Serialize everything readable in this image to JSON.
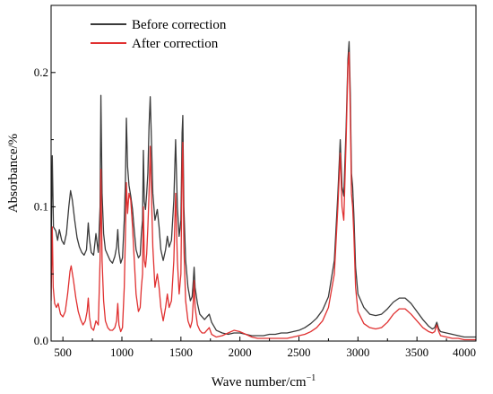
{
  "chart_data": {
    "type": "line",
    "title": "",
    "xlabel": "Wave number/cm",
    "xlabel_superscript": "−1",
    "ylabel": "Absorbance/%",
    "xlim": [
      400,
      4000
    ],
    "ylim": [
      0,
      0.25
    ],
    "x_ticks": [
      500,
      1000,
      1500,
      2000,
      2500,
      3000,
      3500,
      4000
    ],
    "x_tick_labels": [
      "500",
      "1000",
      "1500",
      "2000",
      "2500",
      "3000",
      "3500",
      "4000"
    ],
    "y_ticks": [
      0.0,
      0.1,
      0.2
    ],
    "y_tick_labels": [
      "0.0",
      "0.1",
      "0.2"
    ],
    "grid": false,
    "legend_position": "top-left",
    "series": [
      {
        "name": "Before correction",
        "color": "#3a3a3a",
        "points": [
          [
            400,
            0.07
          ],
          [
            410,
            0.138
          ],
          [
            420,
            0.085
          ],
          [
            440,
            0.082
          ],
          [
            455,
            0.075
          ],
          [
            470,
            0.083
          ],
          [
            490,
            0.075
          ],
          [
            510,
            0.072
          ],
          [
            530,
            0.08
          ],
          [
            550,
            0.1
          ],
          [
            565,
            0.112
          ],
          [
            580,
            0.105
          ],
          [
            600,
            0.09
          ],
          [
            620,
            0.077
          ],
          [
            640,
            0.07
          ],
          [
            660,
            0.066
          ],
          [
            680,
            0.064
          ],
          [
            700,
            0.068
          ],
          [
            715,
            0.088
          ],
          [
            725,
            0.076
          ],
          [
            740,
            0.066
          ],
          [
            760,
            0.064
          ],
          [
            780,
            0.08
          ],
          [
            800,
            0.066
          ],
          [
            815,
            0.1
          ],
          [
            822,
            0.183
          ],
          [
            832,
            0.11
          ],
          [
            845,
            0.08
          ],
          [
            860,
            0.068
          ],
          [
            880,
            0.064
          ],
          [
            900,
            0.06
          ],
          [
            920,
            0.058
          ],
          [
            940,
            0.063
          ],
          [
            955,
            0.07
          ],
          [
            965,
            0.083
          ],
          [
            975,
            0.066
          ],
          [
            990,
            0.058
          ],
          [
            1005,
            0.062
          ],
          [
            1020,
            0.09
          ],
          [
            1030,
            0.12
          ],
          [
            1038,
            0.166
          ],
          [
            1048,
            0.13
          ],
          [
            1060,
            0.116
          ],
          [
            1075,
            0.108
          ],
          [
            1090,
            0.098
          ],
          [
            1105,
            0.082
          ],
          [
            1120,
            0.068
          ],
          [
            1140,
            0.062
          ],
          [
            1155,
            0.064
          ],
          [
            1165,
            0.08
          ],
          [
            1175,
            0.09
          ],
          [
            1182,
            0.142
          ],
          [
            1190,
            0.104
          ],
          [
            1200,
            0.098
          ],
          [
            1210,
            0.11
          ],
          [
            1220,
            0.125
          ],
          [
            1230,
            0.16
          ],
          [
            1240,
            0.182
          ],
          [
            1250,
            0.15
          ],
          [
            1262,
            0.11
          ],
          [
            1280,
            0.09
          ],
          [
            1300,
            0.098
          ],
          [
            1315,
            0.085
          ],
          [
            1330,
            0.068
          ],
          [
            1350,
            0.06
          ],
          [
            1370,
            0.068
          ],
          [
            1385,
            0.078
          ],
          [
            1400,
            0.07
          ],
          [
            1420,
            0.075
          ],
          [
            1440,
            0.105
          ],
          [
            1455,
            0.15
          ],
          [
            1470,
            0.1
          ],
          [
            1485,
            0.078
          ],
          [
            1500,
            0.09
          ],
          [
            1510,
            0.155
          ],
          [
            1516,
            0.168
          ],
          [
            1525,
            0.1
          ],
          [
            1540,
            0.06
          ],
          [
            1560,
            0.04
          ],
          [
            1580,
            0.03
          ],
          [
            1595,
            0.033
          ],
          [
            1605,
            0.045
          ],
          [
            1612,
            0.055
          ],
          [
            1620,
            0.04
          ],
          [
            1640,
            0.028
          ],
          [
            1660,
            0.02
          ],
          [
            1680,
            0.018
          ],
          [
            1700,
            0.016
          ],
          [
            1720,
            0.018
          ],
          [
            1740,
            0.02
          ],
          [
            1760,
            0.014
          ],
          [
            1800,
            0.008
          ],
          [
            1850,
            0.006
          ],
          [
            1900,
            0.005
          ],
          [
            1950,
            0.006
          ],
          [
            2000,
            0.006
          ],
          [
            2050,
            0.005
          ],
          [
            2100,
            0.004
          ],
          [
            2150,
            0.004
          ],
          [
            2200,
            0.004
          ],
          [
            2250,
            0.005
          ],
          [
            2300,
            0.005
          ],
          [
            2350,
            0.006
          ],
          [
            2400,
            0.006
          ],
          [
            2450,
            0.007
          ],
          [
            2500,
            0.008
          ],
          [
            2550,
            0.01
          ],
          [
            2600,
            0.013
          ],
          [
            2650,
            0.017
          ],
          [
            2700,
            0.023
          ],
          [
            2750,
            0.033
          ],
          [
            2800,
            0.06
          ],
          [
            2830,
            0.11
          ],
          [
            2850,
            0.15
          ],
          [
            2865,
            0.115
          ],
          [
            2880,
            0.108
          ],
          [
            2900,
            0.16
          ],
          [
            2915,
            0.21
          ],
          [
            2925,
            0.223
          ],
          [
            2935,
            0.185
          ],
          [
            2945,
            0.125
          ],
          [
            2955,
            0.115
          ],
          [
            2965,
            0.095
          ],
          [
            2980,
            0.055
          ],
          [
            3000,
            0.035
          ],
          [
            3050,
            0.025
          ],
          [
            3100,
            0.02
          ],
          [
            3150,
            0.019
          ],
          [
            3200,
            0.02
          ],
          [
            3250,
            0.024
          ],
          [
            3300,
            0.029
          ],
          [
            3350,
            0.032
          ],
          [
            3400,
            0.032
          ],
          [
            3450,
            0.028
          ],
          [
            3500,
            0.022
          ],
          [
            3550,
            0.016
          ],
          [
            3600,
            0.011
          ],
          [
            3630,
            0.009
          ],
          [
            3650,
            0.01
          ],
          [
            3668,
            0.014
          ],
          [
            3685,
            0.009
          ],
          [
            3700,
            0.007
          ],
          [
            3750,
            0.006
          ],
          [
            3800,
            0.005
          ],
          [
            3850,
            0.004
          ],
          [
            3900,
            0.003
          ],
          [
            3950,
            0.003
          ],
          [
            4000,
            0.003
          ]
        ]
      },
      {
        "name": "After correction",
        "color": "#e03030",
        "points": [
          [
            400,
            0.03
          ],
          [
            410,
            0.085
          ],
          [
            418,
            0.04
          ],
          [
            430,
            0.028
          ],
          [
            445,
            0.025
          ],
          [
            460,
            0.028
          ],
          [
            480,
            0.02
          ],
          [
            500,
            0.018
          ],
          [
            520,
            0.022
          ],
          [
            540,
            0.035
          ],
          [
            560,
            0.052
          ],
          [
            570,
            0.056
          ],
          [
            590,
            0.045
          ],
          [
            610,
            0.032
          ],
          [
            630,
            0.022
          ],
          [
            650,
            0.016
          ],
          [
            670,
            0.012
          ],
          [
            690,
            0.015
          ],
          [
            705,
            0.022
          ],
          [
            715,
            0.032
          ],
          [
            725,
            0.018
          ],
          [
            740,
            0.01
          ],
          [
            760,
            0.008
          ],
          [
            780,
            0.015
          ],
          [
            800,
            0.012
          ],
          [
            815,
            0.06
          ],
          [
            822,
            0.128
          ],
          [
            832,
            0.06
          ],
          [
            845,
            0.03
          ],
          [
            860,
            0.015
          ],
          [
            880,
            0.01
          ],
          [
            900,
            0.008
          ],
          [
            920,
            0.008
          ],
          [
            940,
            0.01
          ],
          [
            955,
            0.015
          ],
          [
            965,
            0.028
          ],
          [
            975,
            0.012
          ],
          [
            990,
            0.007
          ],
          [
            1005,
            0.01
          ],
          [
            1020,
            0.04
          ],
          [
            1030,
            0.08
          ],
          [
            1038,
            0.118
          ],
          [
            1048,
            0.095
          ],
          [
            1060,
            0.11
          ],
          [
            1075,
            0.105
          ],
          [
            1090,
            0.085
          ],
          [
            1105,
            0.06
          ],
          [
            1120,
            0.035
          ],
          [
            1140,
            0.022
          ],
          [
            1155,
            0.025
          ],
          [
            1165,
            0.04
          ],
          [
            1175,
            0.05
          ],
          [
            1182,
            0.1
          ],
          [
            1190,
            0.06
          ],
          [
            1200,
            0.055
          ],
          [
            1210,
            0.065
          ],
          [
            1220,
            0.085
          ],
          [
            1230,
            0.11
          ],
          [
            1240,
            0.145
          ],
          [
            1250,
            0.11
          ],
          [
            1262,
            0.07
          ],
          [
            1280,
            0.04
          ],
          [
            1300,
            0.05
          ],
          [
            1315,
            0.04
          ],
          [
            1330,
            0.025
          ],
          [
            1350,
            0.015
          ],
          [
            1370,
            0.025
          ],
          [
            1385,
            0.035
          ],
          [
            1400,
            0.025
          ],
          [
            1420,
            0.03
          ],
          [
            1440,
            0.06
          ],
          [
            1455,
            0.11
          ],
          [
            1470,
            0.06
          ],
          [
            1485,
            0.035
          ],
          [
            1500,
            0.05
          ],
          [
            1510,
            0.13
          ],
          [
            1516,
            0.148
          ],
          [
            1525,
            0.07
          ],
          [
            1540,
            0.03
          ],
          [
            1560,
            0.015
          ],
          [
            1580,
            0.01
          ],
          [
            1595,
            0.015
          ],
          [
            1605,
            0.03
          ],
          [
            1612,
            0.045
          ],
          [
            1620,
            0.025
          ],
          [
            1640,
            0.012
          ],
          [
            1660,
            0.008
          ],
          [
            1680,
            0.006
          ],
          [
            1700,
            0.006
          ],
          [
            1720,
            0.008
          ],
          [
            1740,
            0.01
          ],
          [
            1760,
            0.005
          ],
          [
            1800,
            0.003
          ],
          [
            1850,
            0.004
          ],
          [
            1900,
            0.006
          ],
          [
            1950,
            0.008
          ],
          [
            2000,
            0.007
          ],
          [
            2050,
            0.005
          ],
          [
            2100,
            0.003
          ],
          [
            2150,
            0.002
          ],
          [
            2200,
            0.002
          ],
          [
            2250,
            0.002
          ],
          [
            2300,
            0.002
          ],
          [
            2350,
            0.002
          ],
          [
            2400,
            0.002
          ],
          [
            2450,
            0.003
          ],
          [
            2500,
            0.004
          ],
          [
            2550,
            0.005
          ],
          [
            2600,
            0.007
          ],
          [
            2650,
            0.01
          ],
          [
            2700,
            0.015
          ],
          [
            2750,
            0.025
          ],
          [
            2800,
            0.05
          ],
          [
            2830,
            0.1
          ],
          [
            2850,
            0.14
          ],
          [
            2865,
            0.1
          ],
          [
            2880,
            0.09
          ],
          [
            2900,
            0.15
          ],
          [
            2915,
            0.205
          ],
          [
            2925,
            0.215
          ],
          [
            2935,
            0.17
          ],
          [
            2945,
            0.11
          ],
          [
            2955,
            0.1
          ],
          [
            2965,
            0.08
          ],
          [
            2980,
            0.04
          ],
          [
            3000,
            0.022
          ],
          [
            3050,
            0.013
          ],
          [
            3100,
            0.01
          ],
          [
            3150,
            0.009
          ],
          [
            3200,
            0.01
          ],
          [
            3250,
            0.014
          ],
          [
            3300,
            0.02
          ],
          [
            3350,
            0.024
          ],
          [
            3400,
            0.024
          ],
          [
            3450,
            0.02
          ],
          [
            3500,
            0.015
          ],
          [
            3550,
            0.01
          ],
          [
            3600,
            0.007
          ],
          [
            3630,
            0.006
          ],
          [
            3650,
            0.007
          ],
          [
            3668,
            0.012
          ],
          [
            3685,
            0.007
          ],
          [
            3700,
            0.004
          ],
          [
            3750,
            0.003
          ],
          [
            3800,
            0.002
          ],
          [
            3850,
            0.002
          ],
          [
            3900,
            0.001
          ],
          [
            3950,
            0.001
          ],
          [
            4000,
            0.001
          ]
        ]
      }
    ]
  }
}
